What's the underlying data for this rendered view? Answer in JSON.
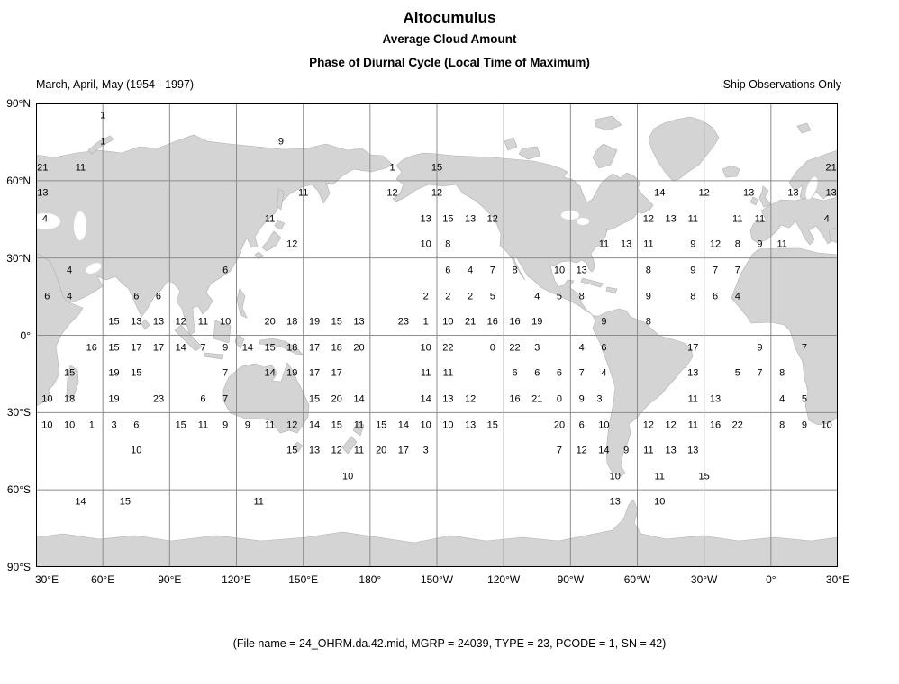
{
  "title": "Altocumulus",
  "subtitle1": "Average Cloud Amount",
  "subtitle2": "Phase of Diurnal Cycle (Local Time of Maximum)",
  "period_label": "March, April, May (1954 - 1997)",
  "source_label": "Ship Observations Only",
  "caption": "(File name = 24_OHRM.da.42.mid, MGRP = 24039, TYPE = 23, PCODE = 1, SN = 42)",
  "colors": {
    "land": "#d4d4d4",
    "grid": "#8c8c8c",
    "border": "#000000",
    "text": "#000000"
  },
  "chart_data": {
    "type": "map-grid",
    "title": "Altocumulus — Average Cloud Amount — Phase of Diurnal Cycle (Local Time of Maximum)",
    "lon_range": [
      30,
      390
    ],
    "lat_range": [
      90,
      -90
    ],
    "grid_step_degrees": 30,
    "x_tick_labels": [
      "30°E",
      "60°E",
      "90°E",
      "120°E",
      "150°E",
      "180°",
      "150°W",
      "120°W",
      "90°W",
      "60°W",
      "30°W",
      "0°",
      "30°E"
    ],
    "y_tick_labels": [
      "90°N",
      "60°N",
      "30°N",
      "0°",
      "30°S",
      "60°S",
      "90°S"
    ],
    "points_format": [
      "lon_plot_deg",
      "lat_deg",
      "local_time_of_maximum"
    ],
    "points": [
      [
        60,
        85,
        1
      ],
      [
        60,
        75,
        1
      ],
      [
        140,
        75,
        9
      ],
      [
        33,
        65,
        21
      ],
      [
        50,
        65,
        11
      ],
      [
        190,
        65,
        1
      ],
      [
        210,
        65,
        15
      ],
      [
        387,
        65,
        21
      ],
      [
        33,
        55,
        13
      ],
      [
        150,
        55,
        11
      ],
      [
        190,
        55,
        12
      ],
      [
        210,
        55,
        12
      ],
      [
        310,
        55,
        14
      ],
      [
        330,
        55,
        12
      ],
      [
        350,
        55,
        13
      ],
      [
        370,
        55,
        13
      ],
      [
        387,
        55,
        13
      ],
      [
        34,
        45,
        4
      ],
      [
        135,
        45,
        11
      ],
      [
        205,
        45,
        13
      ],
      [
        215,
        45,
        15
      ],
      [
        225,
        45,
        13
      ],
      [
        235,
        45,
        12
      ],
      [
        305,
        45,
        12
      ],
      [
        315,
        45,
        13
      ],
      [
        325,
        45,
        11
      ],
      [
        345,
        45,
        11
      ],
      [
        355,
        45,
        11
      ],
      [
        385,
        45,
        4
      ],
      [
        145,
        35,
        12
      ],
      [
        205,
        35,
        10
      ],
      [
        215,
        35,
        8
      ],
      [
        285,
        35,
        11
      ],
      [
        295,
        35,
        13
      ],
      [
        305,
        35,
        11
      ],
      [
        325,
        35,
        9
      ],
      [
        335,
        35,
        12
      ],
      [
        345,
        35,
        8
      ],
      [
        355,
        35,
        9
      ],
      [
        365,
        35,
        11
      ],
      [
        45,
        25,
        4
      ],
      [
        115,
        25,
        6
      ],
      [
        215,
        25,
        6
      ],
      [
        225,
        25,
        4
      ],
      [
        235,
        25,
        7
      ],
      [
        245,
        25,
        8
      ],
      [
        265,
        25,
        10
      ],
      [
        275,
        25,
        13
      ],
      [
        305,
        25,
        8
      ],
      [
        325,
        25,
        9
      ],
      [
        335,
        25,
        7
      ],
      [
        345,
        25,
        7
      ],
      [
        35,
        15,
        6
      ],
      [
        45,
        15,
        4
      ],
      [
        75,
        15,
        6
      ],
      [
        85,
        15,
        6
      ],
      [
        205,
        15,
        2
      ],
      [
        215,
        15,
        2
      ],
      [
        225,
        15,
        2
      ],
      [
        235,
        15,
        5
      ],
      [
        255,
        15,
        4
      ],
      [
        265,
        15,
        5
      ],
      [
        275,
        15,
        8
      ],
      [
        305,
        15,
        9
      ],
      [
        325,
        15,
        8
      ],
      [
        335,
        15,
        6
      ],
      [
        345,
        15,
        4
      ],
      [
        65,
        5,
        15
      ],
      [
        75,
        5,
        13
      ],
      [
        85,
        5,
        13
      ],
      [
        95,
        5,
        12
      ],
      [
        105,
        5,
        11
      ],
      [
        115,
        5,
        10
      ],
      [
        135,
        5,
        20
      ],
      [
        145,
        5,
        18
      ],
      [
        155,
        5,
        19
      ],
      [
        165,
        5,
        15
      ],
      [
        175,
        5,
        13
      ],
      [
        195,
        5,
        23
      ],
      [
        205,
        5,
        1
      ],
      [
        215,
        5,
        10
      ],
      [
        225,
        5,
        21
      ],
      [
        235,
        5,
        16
      ],
      [
        245,
        5,
        16
      ],
      [
        255,
        5,
        19
      ],
      [
        285,
        5,
        9
      ],
      [
        305,
        5,
        8
      ],
      [
        55,
        -5,
        16
      ],
      [
        65,
        -5,
        15
      ],
      [
        75,
        -5,
        17
      ],
      [
        85,
        -5,
        17
      ],
      [
        95,
        -5,
        14
      ],
      [
        105,
        -5,
        7
      ],
      [
        115,
        -5,
        9
      ],
      [
        125,
        -5,
        14
      ],
      [
        135,
        -5,
        15
      ],
      [
        145,
        -5,
        18
      ],
      [
        155,
        -5,
        17
      ],
      [
        165,
        -5,
        18
      ],
      [
        175,
        -5,
        20
      ],
      [
        205,
        -5,
        10
      ],
      [
        215,
        -5,
        22
      ],
      [
        235,
        -5,
        0
      ],
      [
        245,
        -5,
        22
      ],
      [
        255,
        -5,
        3
      ],
      [
        275,
        -5,
        4
      ],
      [
        285,
        -5,
        6
      ],
      [
        325,
        -5,
        17
      ],
      [
        355,
        -5,
        9
      ],
      [
        375,
        -5,
        7
      ],
      [
        45,
        -15,
        15
      ],
      [
        65,
        -15,
        19
      ],
      [
        75,
        -15,
        15
      ],
      [
        115,
        -15,
        7
      ],
      [
        135,
        -15,
        14
      ],
      [
        145,
        -15,
        19
      ],
      [
        155,
        -15,
        17
      ],
      [
        165,
        -15,
        17
      ],
      [
        205,
        -15,
        11
      ],
      [
        215,
        -15,
        11
      ],
      [
        245,
        -15,
        6
      ],
      [
        255,
        -15,
        6
      ],
      [
        265,
        -15,
        6
      ],
      [
        275,
        -15,
        7
      ],
      [
        285,
        -15,
        4
      ],
      [
        325,
        -15,
        13
      ],
      [
        345,
        -15,
        5
      ],
      [
        355,
        -15,
        7
      ],
      [
        365,
        -15,
        8
      ],
      [
        35,
        -25,
        10
      ],
      [
        45,
        -25,
        18
      ],
      [
        65,
        -25,
        19
      ],
      [
        85,
        -25,
        23
      ],
      [
        105,
        -25,
        6
      ],
      [
        115,
        -25,
        7
      ],
      [
        155,
        -25,
        15
      ],
      [
        165,
        -25,
        20
      ],
      [
        175,
        -25,
        14
      ],
      [
        205,
        -25,
        14
      ],
      [
        215,
        -25,
        13
      ],
      [
        225,
        -25,
        12
      ],
      [
        245,
        -25,
        16
      ],
      [
        255,
        -25,
        21
      ],
      [
        265,
        -25,
        0
      ],
      [
        275,
        -25,
        9
      ],
      [
        283,
        -25,
        3
      ],
      [
        325,
        -25,
        11
      ],
      [
        335,
        -25,
        13
      ],
      [
        365,
        -25,
        4
      ],
      [
        375,
        -25,
        5
      ],
      [
        35,
        -35,
        10
      ],
      [
        45,
        -35,
        10
      ],
      [
        55,
        -35,
        1
      ],
      [
        65,
        -35,
        3
      ],
      [
        75,
        -35,
        6
      ],
      [
        95,
        -35,
        15
      ],
      [
        105,
        -35,
        11
      ],
      [
        115,
        -35,
        9
      ],
      [
        125,
        -35,
        9
      ],
      [
        135,
        -35,
        11
      ],
      [
        145,
        -35,
        12
      ],
      [
        155,
        -35,
        14
      ],
      [
        165,
        -35,
        15
      ],
      [
        175,
        -35,
        11
      ],
      [
        185,
        -35,
        15
      ],
      [
        195,
        -35,
        14
      ],
      [
        205,
        -35,
        10
      ],
      [
        215,
        -35,
        10
      ],
      [
        225,
        -35,
        13
      ],
      [
        235,
        -35,
        15
      ],
      [
        265,
        -35,
        20
      ],
      [
        275,
        -35,
        6
      ],
      [
        285,
        -35,
        10
      ],
      [
        305,
        -35,
        12
      ],
      [
        315,
        -35,
        12
      ],
      [
        325,
        -35,
        11
      ],
      [
        335,
        -35,
        16
      ],
      [
        345,
        -35,
        22
      ],
      [
        365,
        -35,
        8
      ],
      [
        375,
        -35,
        9
      ],
      [
        385,
        -35,
        10
      ],
      [
        75,
        -45,
        10
      ],
      [
        145,
        -45,
        15
      ],
      [
        155,
        -45,
        13
      ],
      [
        165,
        -45,
        12
      ],
      [
        175,
        -45,
        11
      ],
      [
        185,
        -45,
        20
      ],
      [
        195,
        -45,
        17
      ],
      [
        205,
        -45,
        3
      ],
      [
        265,
        -45,
        7
      ],
      [
        275,
        -45,
        12
      ],
      [
        285,
        -45,
        14
      ],
      [
        295,
        -45,
        9
      ],
      [
        305,
        -45,
        11
      ],
      [
        315,
        -45,
        13
      ],
      [
        325,
        -45,
        13
      ],
      [
        170,
        -55,
        10
      ],
      [
        290,
        -55,
        10
      ],
      [
        310,
        -55,
        11
      ],
      [
        330,
        -55,
        15
      ],
      [
        50,
        -65,
        14
      ],
      [
        70,
        -65,
        15
      ],
      [
        130,
        -65,
        11
      ],
      [
        290,
        -65,
        13
      ],
      [
        310,
        -65,
        10
      ]
    ]
  }
}
